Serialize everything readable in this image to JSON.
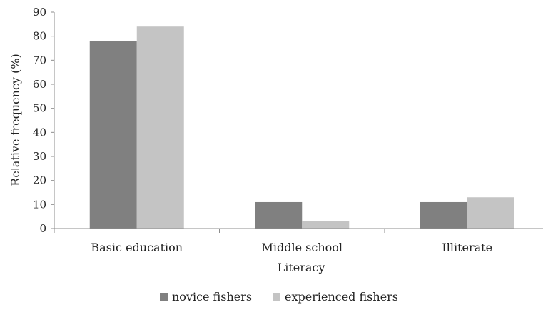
{
  "chart_data": {
    "type": "bar",
    "title": "",
    "xlabel": "Literacy",
    "ylabel": "Relative frequency (%)",
    "ylim": [
      0,
      90
    ],
    "yticks": [
      0,
      10,
      20,
      30,
      40,
      50,
      60,
      70,
      80,
      90
    ],
    "categories": [
      "Basic education",
      "Middle school",
      "Illiterate"
    ],
    "series": [
      {
        "name": "novice fishers",
        "color": "#808080",
        "values": [
          78,
          11,
          11
        ]
      },
      {
        "name": "experienced fishers",
        "color": "#c4c4c4",
        "values": [
          84,
          3,
          13
        ]
      }
    ],
    "grid": false,
    "legend_position": "bottom"
  }
}
